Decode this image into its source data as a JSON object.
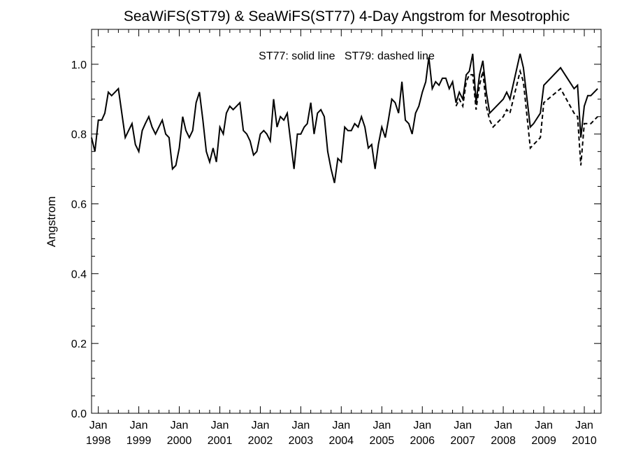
{
  "chart_data": {
    "type": "line",
    "title": "SeaWiFS(ST79) & SeaWiFS(ST77) 4-Day Angstrom for Mesotrophic",
    "annotation": "ST77: solid line   ST79: dashed line",
    "xlabel": "",
    "ylabel": "Angstrom",
    "ylim": [
      0,
      1.1
    ],
    "xlim": [
      "1997-11-01",
      "2010-06-01"
    ],
    "y_ticks": [
      "0.0",
      "0.2",
      "0.4",
      "0.6",
      "0.8",
      "1.0"
    ],
    "x_ticks": [
      {
        "date": "1998-01-01",
        "month": "Jan",
        "year": "1998"
      },
      {
        "date": "1999-01-01",
        "month": "Jan",
        "year": "1999"
      },
      {
        "date": "2000-01-01",
        "month": "Jan",
        "year": "2000"
      },
      {
        "date": "2001-01-01",
        "month": "Jan",
        "year": "2001"
      },
      {
        "date": "2002-01-01",
        "month": "Jan",
        "year": "2002"
      },
      {
        "date": "2003-01-01",
        "month": "Jan",
        "year": "2003"
      },
      {
        "date": "2004-01-01",
        "month": "Jan",
        "year": "2004"
      },
      {
        "date": "2005-01-01",
        "month": "Jan",
        "year": "2005"
      },
      {
        "date": "2006-01-01",
        "month": "Jan",
        "year": "2006"
      },
      {
        "date": "2007-01-01",
        "month": "Jan",
        "year": "2007"
      },
      {
        "date": "2008-01-01",
        "month": "Jan",
        "year": "2008"
      },
      {
        "date": "2009-01-01",
        "month": "Jan",
        "year": "2009"
      },
      {
        "date": "2010-01-01",
        "month": "Jan",
        "year": "2010"
      }
    ],
    "grid": false,
    "series": [
      {
        "name": "ST77",
        "style": "solid",
        "color": "#000000",
        "points": [
          [
            "1997-11-01",
            0.79
          ],
          [
            "1997-12-01",
            0.75
          ],
          [
            "1998-01-01",
            0.84
          ],
          [
            "1998-02-01",
            0.84
          ],
          [
            "1998-03-01",
            0.86
          ],
          [
            "1998-04-01",
            0.92
          ],
          [
            "1998-05-01",
            0.91
          ],
          [
            "1998-06-01",
            0.92
          ],
          [
            "1998-07-01",
            0.93
          ],
          [
            "1998-08-01",
            0.86
          ],
          [
            "1998-09-01",
            0.79
          ],
          [
            "1998-10-01",
            0.81
          ],
          [
            "1998-11-01",
            0.83
          ],
          [
            "1998-12-01",
            0.77
          ],
          [
            "1999-01-01",
            0.75
          ],
          [
            "1999-02-01",
            0.81
          ],
          [
            "1999-03-01",
            0.83
          ],
          [
            "1999-04-01",
            0.85
          ],
          [
            "1999-05-01",
            0.82
          ],
          [
            "1999-06-01",
            0.8
          ],
          [
            "1999-07-01",
            0.82
          ],
          [
            "1999-08-01",
            0.84
          ],
          [
            "1999-09-01",
            0.8
          ],
          [
            "1999-10-01",
            0.79
          ],
          [
            "1999-11-01",
            0.7
          ],
          [
            "1999-12-01",
            0.71
          ],
          [
            "2000-01-01",
            0.76
          ],
          [
            "2000-02-01",
            0.85
          ],
          [
            "2000-03-01",
            0.81
          ],
          [
            "2000-04-01",
            0.79
          ],
          [
            "2000-05-01",
            0.81
          ],
          [
            "2000-06-01",
            0.89
          ],
          [
            "2000-07-01",
            0.92
          ],
          [
            "2000-08-01",
            0.84
          ],
          [
            "2000-09-01",
            0.75
          ],
          [
            "2000-10-01",
            0.72
          ],
          [
            "2000-11-01",
            0.76
          ],
          [
            "2000-12-01",
            0.72
          ],
          [
            "2001-01-01",
            0.82
          ],
          [
            "2001-02-01",
            0.8
          ],
          [
            "2001-03-01",
            0.86
          ],
          [
            "2001-04-01",
            0.88
          ],
          [
            "2001-05-01",
            0.87
          ],
          [
            "2001-06-01",
            0.88
          ],
          [
            "2001-07-01",
            0.89
          ],
          [
            "2001-08-01",
            0.81
          ],
          [
            "2001-09-01",
            0.8
          ],
          [
            "2001-10-01",
            0.78
          ],
          [
            "2001-11-01",
            0.74
          ],
          [
            "2001-12-01",
            0.75
          ],
          [
            "2002-01-01",
            0.8
          ],
          [
            "2002-02-01",
            0.81
          ],
          [
            "2002-03-01",
            0.8
          ],
          [
            "2002-04-01",
            0.78
          ],
          [
            "2002-05-01",
            0.9
          ],
          [
            "2002-06-01",
            0.82
          ],
          [
            "2002-07-01",
            0.85
          ],
          [
            "2002-08-01",
            0.84
          ],
          [
            "2002-09-01",
            0.86
          ],
          [
            "2002-10-01",
            0.78
          ],
          [
            "2002-11-01",
            0.7
          ],
          [
            "2002-12-01",
            0.8
          ],
          [
            "2003-01-01",
            0.8
          ],
          [
            "2003-02-01",
            0.82
          ],
          [
            "2003-03-01",
            0.83
          ],
          [
            "2003-04-01",
            0.89
          ],
          [
            "2003-05-01",
            0.8
          ],
          [
            "2003-06-01",
            0.86
          ],
          [
            "2003-07-01",
            0.87
          ],
          [
            "2003-08-01",
            0.85
          ],
          [
            "2003-09-01",
            0.75
          ],
          [
            "2003-10-01",
            0.7
          ],
          [
            "2003-11-01",
            0.66
          ],
          [
            "2003-12-01",
            0.73
          ],
          [
            "2004-01-01",
            0.72
          ],
          [
            "2004-02-01",
            0.82
          ],
          [
            "2004-03-01",
            0.81
          ],
          [
            "2004-04-01",
            0.81
          ],
          [
            "2004-05-01",
            0.83
          ],
          [
            "2004-06-01",
            0.82
          ],
          [
            "2004-07-01",
            0.85
          ],
          [
            "2004-08-01",
            0.82
          ],
          [
            "2004-09-01",
            0.76
          ],
          [
            "2004-10-01",
            0.77
          ],
          [
            "2004-11-01",
            0.7
          ],
          [
            "2004-12-01",
            0.77
          ],
          [
            "2005-01-01",
            0.82
          ],
          [
            "2005-02-01",
            0.79
          ],
          [
            "2005-03-01",
            0.84
          ],
          [
            "2005-04-01",
            0.9
          ],
          [
            "2005-05-01",
            0.89
          ],
          [
            "2005-06-01",
            0.86
          ],
          [
            "2005-07-01",
            0.95
          ],
          [
            "2005-08-01",
            0.84
          ],
          [
            "2005-09-01",
            0.83
          ],
          [
            "2005-10-01",
            0.8
          ],
          [
            "2005-11-01",
            0.86
          ],
          [
            "2005-12-01",
            0.88
          ],
          [
            "2006-01-01",
            0.92
          ],
          [
            "2006-02-01",
            0.95
          ],
          [
            "2006-03-01",
            1.02
          ],
          [
            "2006-04-01",
            0.93
          ],
          [
            "2006-05-01",
            0.95
          ],
          [
            "2006-06-01",
            0.94
          ],
          [
            "2006-07-01",
            0.96
          ],
          [
            "2006-08-01",
            0.96
          ],
          [
            "2006-09-01",
            0.93
          ],
          [
            "2006-10-01",
            0.95
          ],
          [
            "2006-11-01",
            0.89
          ],
          [
            "2006-12-01",
            0.92
          ],
          [
            "2007-01-01",
            0.9
          ],
          [
            "2007-02-01",
            0.97
          ],
          [
            "2007-03-01",
            0.98
          ],
          [
            "2007-04-01",
            1.03
          ],
          [
            "2007-05-01",
            0.89
          ],
          [
            "2007-06-01",
            0.97
          ],
          [
            "2007-07-01",
            1.01
          ],
          [
            "2007-08-01",
            0.92
          ],
          [
            "2007-09-01",
            0.86
          ],
          [
            "2007-11-01",
            0.88
          ],
          [
            "2008-01-01",
            0.9
          ],
          [
            "2008-02-01",
            0.92
          ],
          [
            "2008-03-01",
            0.9
          ],
          [
            "2008-06-01",
            1.03
          ],
          [
            "2008-07-01",
            0.99
          ],
          [
            "2008-09-01",
            0.82
          ],
          [
            "2008-10-01",
            0.83
          ],
          [
            "2008-12-01",
            0.86
          ],
          [
            "2009-01-01",
            0.94
          ],
          [
            "2009-06-01",
            0.99
          ],
          [
            "2009-10-01",
            0.93
          ],
          [
            "2009-11-01",
            0.94
          ],
          [
            "2009-12-01",
            0.79
          ],
          [
            "2010-01-01",
            0.88
          ],
          [
            "2010-02-01",
            0.91
          ],
          [
            "2010-03-01",
            0.91
          ],
          [
            "2010-05-01",
            0.93
          ]
        ]
      },
      {
        "name": "ST79",
        "style": "dashed",
        "color": "#000000",
        "points": [
          [
            "2006-11-01",
            0.88
          ],
          [
            "2006-12-01",
            0.9
          ],
          [
            "2007-01-01",
            0.88
          ],
          [
            "2007-02-01",
            0.95
          ],
          [
            "2007-03-01",
            0.97
          ],
          [
            "2007-04-01",
            0.97
          ],
          [
            "2007-05-01",
            0.87
          ],
          [
            "2007-06-01",
            0.94
          ],
          [
            "2007-07-01",
            0.98
          ],
          [
            "2007-08-01",
            0.88
          ],
          [
            "2007-09-01",
            0.84
          ],
          [
            "2007-10-01",
            0.82
          ],
          [
            "2008-01-01",
            0.85
          ],
          [
            "2008-02-01",
            0.87
          ],
          [
            "2008-03-01",
            0.86
          ],
          [
            "2008-06-01",
            0.98
          ],
          [
            "2008-07-01",
            0.95
          ],
          [
            "2008-09-01",
            0.76
          ],
          [
            "2008-10-01",
            0.77
          ],
          [
            "2008-12-01",
            0.79
          ],
          [
            "2009-01-01",
            0.89
          ],
          [
            "2009-06-01",
            0.93
          ],
          [
            "2009-10-01",
            0.86
          ],
          [
            "2009-11-01",
            0.85
          ],
          [
            "2009-12-01",
            0.71
          ],
          [
            "2010-01-01",
            0.83
          ],
          [
            "2010-03-01",
            0.83
          ],
          [
            "2010-05-01",
            0.85
          ]
        ]
      }
    ]
  }
}
